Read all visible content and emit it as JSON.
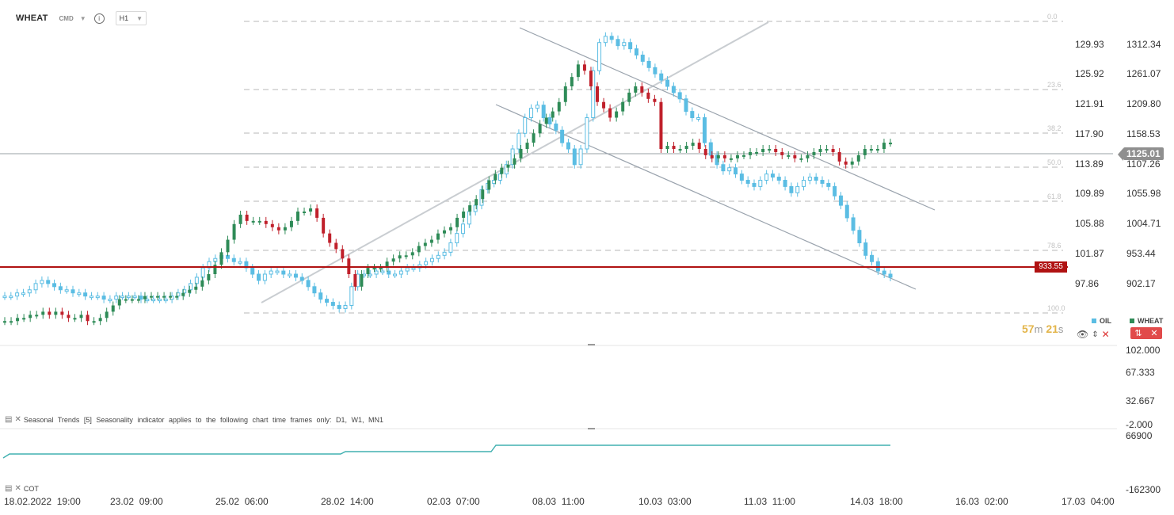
{
  "header": {
    "symbol": "WHEAT",
    "symbol_type": "CMD",
    "timeframe": "H1"
  },
  "price_axis_left": [
    "129.93",
    "125.92",
    "121.91",
    "117.90",
    "113.89",
    "109.89",
    "105.88",
    "101.87",
    "97.86"
  ],
  "price_axis_right": [
    "1312.34",
    "1261.07",
    "1209.80",
    "1158.53",
    "1107.26",
    "1055.98",
    "1004.71",
    "953.44",
    "902.17"
  ],
  "fibo_levels": [
    "0.0",
    "23.6",
    "38.2",
    "50.0",
    "61.8",
    "78.6",
    "100.0"
  ],
  "last_price": "1125.01",
  "alert_line_price": "933.55",
  "countdown": {
    "minutes": "57",
    "min_unit": "m",
    "seconds": "21",
    "sec_unit": "s"
  },
  "legend": {
    "oil": "OIL",
    "wheat": "WHEAT"
  },
  "colors": {
    "oil": "#5bbde3",
    "wheat_up": "#2e8b57",
    "wheat_down": "#c0202b",
    "alert": "#b01212",
    "teal": "#40b0b0"
  },
  "seasonal_panel": {
    "title": "Seasonal Trends [5] Seasonality indicator applies to the following chart time frames only: D1, W1, MN1",
    "axis": [
      "102.000",
      "67.333",
      "32.667",
      "-2.000"
    ]
  },
  "cot_panel": {
    "title": "COT",
    "axis": [
      "66900",
      "-162300"
    ]
  },
  "time_axis": [
    "18.02.2022  19:00",
    "23.02  09:00",
    "25.02  06:00",
    "28.02  14:00",
    "02.03  07:00",
    "08.03  11:00",
    "10.03  03:00",
    "11.03  11:00",
    "14.03  18:00",
    "16.03  02:00",
    "17.03  04:00"
  ],
  "chart_data": {
    "type": "candlestick",
    "series": [
      {
        "name": "WHEAT",
        "color_up": "#2e8b57",
        "color_down": "#c0202b",
        "path": [
          0.05,
          0.05,
          0.06,
          0.06,
          0.07,
          0.07,
          0.08,
          0.07,
          0.08,
          0.07,
          0.06,
          0.06,
          0.07,
          0.05,
          0.05,
          0.06,
          0.08,
          0.1,
          0.12,
          0.12,
          0.12,
          0.12,
          0.13,
          0.13,
          0.13,
          0.13,
          0.13,
          0.13,
          0.14,
          0.15,
          0.16,
          0.18,
          0.2,
          0.23,
          0.27,
          0.31,
          0.36,
          0.39,
          0.37,
          0.37,
          0.37,
          0.36,
          0.35,
          0.34,
          0.35,
          0.37,
          0.4,
          0.4,
          0.41,
          0.38,
          0.33,
          0.3,
          0.28,
          0.25,
          0.2,
          0.16,
          0.2,
          0.22,
          0.22,
          0.22,
          0.24,
          0.25,
          0.26,
          0.26,
          0.27,
          0.29,
          0.3,
          0.31,
          0.33,
          0.34,
          0.35,
          0.38,
          0.4,
          0.42,
          0.44,
          0.47,
          0.5,
          0.52,
          0.54,
          0.55,
          0.57,
          0.6,
          0.62,
          0.65,
          0.68,
          0.7,
          0.72,
          0.75,
          0.8,
          0.83,
          0.87,
          0.85,
          0.8,
          0.75,
          0.73,
          0.7,
          0.72,
          0.75,
          0.78,
          0.8,
          0.78,
          0.76,
          0.75,
          0.6,
          0.61,
          0.6,
          0.6,
          0.61,
          0.62,
          0.6,
          0.58,
          0.57,
          0.58,
          0.57,
          0.57,
          0.58,
          0.58,
          0.59,
          0.59,
          0.6,
          0.6,
          0.59,
          0.58,
          0.58,
          0.57,
          0.57,
          0.58,
          0.59,
          0.6,
          0.6,
          0.59,
          0.56,
          0.55,
          0.56,
          0.58,
          0.6,
          0.6,
          0.6,
          0.62,
          0.62
        ]
      },
      {
        "name": "OIL",
        "color": "#5bbde3",
        "path": [
          0.13,
          0.13,
          0.14,
          0.14,
          0.15,
          0.17,
          0.18,
          0.17,
          0.16,
          0.15,
          0.15,
          0.14,
          0.14,
          0.13,
          0.13,
          0.13,
          0.12,
          0.12,
          0.13,
          0.13,
          0.13,
          0.13,
          0.12,
          0.12,
          0.12,
          0.12,
          0.12,
          0.13,
          0.14,
          0.15,
          0.17,
          0.19,
          0.22,
          0.24,
          0.25,
          0.26,
          0.25,
          0.24,
          0.24,
          0.22,
          0.2,
          0.18,
          0.2,
          0.21,
          0.21,
          0.2,
          0.2,
          0.19,
          0.18,
          0.16,
          0.14,
          0.12,
          0.11,
          0.1,
          0.09,
          0.1,
          0.16,
          0.2,
          0.2,
          0.2,
          0.21,
          0.21,
          0.2,
          0.2,
          0.21,
          0.22,
          0.22,
          0.23,
          0.24,
          0.25,
          0.26,
          0.27,
          0.3,
          0.33,
          0.36,
          0.4,
          0.42,
          0.47,
          0.49,
          0.5,
          0.52,
          0.55,
          0.6,
          0.65,
          0.7,
          0.73,
          0.74,
          0.7,
          0.68,
          0.66,
          0.62,
          0.6,
          0.55,
          0.6,
          0.7,
          0.85,
          0.94,
          0.96,
          0.95,
          0.93,
          0.94,
          0.92,
          0.9,
          0.88,
          0.86,
          0.84,
          0.82,
          0.8,
          0.78,
          0.76,
          0.72,
          0.7,
          0.7,
          0.62,
          0.58,
          0.55,
          0.53,
          0.54,
          0.52,
          0.5,
          0.49,
          0.48,
          0.5,
          0.52,
          0.51,
          0.5,
          0.48,
          0.46,
          0.48,
          0.5,
          0.51,
          0.5,
          0.49,
          0.48,
          0.45,
          0.42,
          0.38,
          0.34,
          0.3,
          0.26,
          0.24,
          0.21,
          0.2,
          0.19
        ]
      }
    ]
  }
}
